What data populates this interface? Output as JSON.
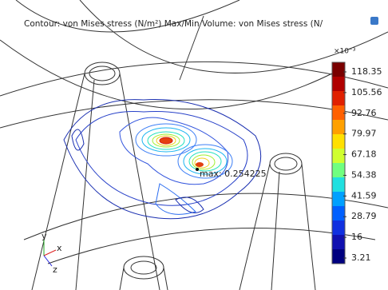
{
  "title": "Contour: von Mises stress (N/m²) Max/Min Volume: von Mises stress (N/",
  "colorbar": {
    "exponent": "×10⁻³",
    "labels": [
      "118.35",
      "105.56",
      "92.76",
      "79.97",
      "67.18",
      "54.38",
      "41.59",
      "28.79",
      "16",
      "3.21"
    ]
  },
  "annotation": "max: 0.254225",
  "axes": {
    "x": "x",
    "y": "y",
    "z": "z"
  }
}
